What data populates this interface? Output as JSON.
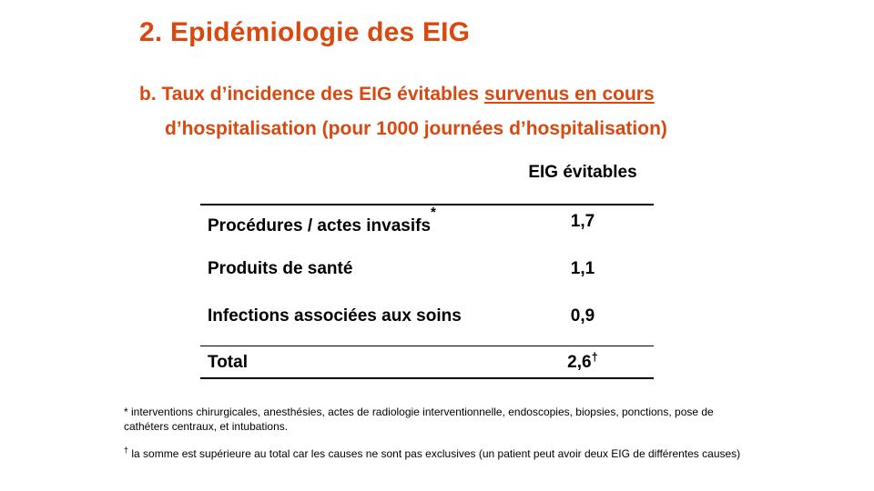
{
  "title": "2. Epidémiologie des EIG",
  "subtitle": {
    "part1": "b. Taux d’incidence des EIG évitables ",
    "underlined": "survenus en cours",
    "line2": "d’hospitalisation (pour 1000 journées d’hospitalisation)"
  },
  "table": {
    "column_header": "EIG évitables",
    "rows": [
      {
        "label": "Procédures  / actes invasifs",
        "mark": "*",
        "value": "1,7"
      },
      {
        "label": "Produits  de santé",
        "mark": "",
        "value": "1,1"
      },
      {
        "label": "Infections  associées  aux soins",
        "mark": "",
        "value": "0,9"
      }
    ],
    "total": {
      "label": "Total",
      "value": "2,6",
      "mark": "†"
    }
  },
  "footnotes": [
    {
      "mark": "",
      "text": "* interventions chirurgicales, anesthésies, actes de radiologie interventionnelle, endoscopies, biopsies, ponctions, pose de cathéters centraux, et  intubations."
    },
    {
      "mark": "†",
      "text": " la somme est supérieure au total car les causes ne sont pas exclusives (un patient peut avoir deux EIG de différentes causes)"
    }
  ],
  "colors": {
    "accent": "#d9480f"
  }
}
